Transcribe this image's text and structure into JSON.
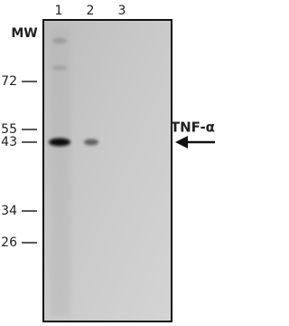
{
  "lanes": [
    "1",
    "2",
    "3"
  ],
  "mw_label": "MW",
  "markers": [
    "72",
    "55",
    "43",
    "34",
    "26"
  ],
  "target_label": "TNF-α"
}
